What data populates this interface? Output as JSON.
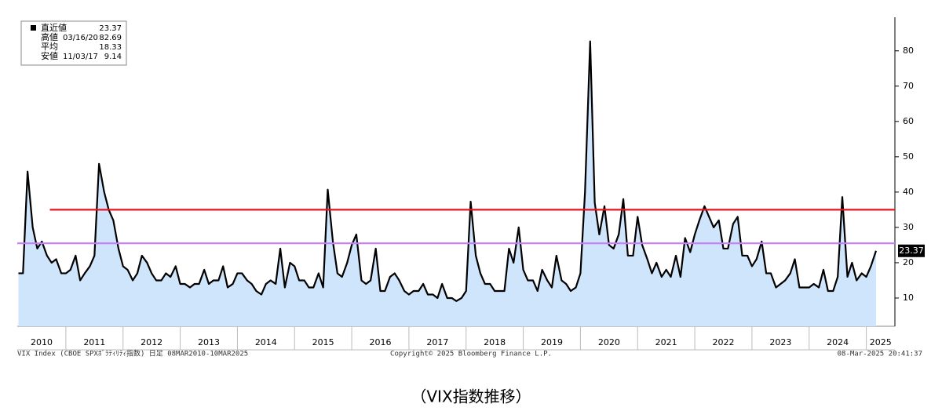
{
  "chart_data": {
    "type": "line",
    "legend": [
      {
        "label": "直近値",
        "date": null,
        "value": 23.37
      },
      {
        "label": "高値",
        "date": "03/16/20",
        "value": 82.69
      },
      {
        "label": "平均",
        "date": null,
        "value": 18.33
      },
      {
        "label": "安値",
        "date": "11/03/17",
        "value": 9.14
      }
    ],
    "last_value_label": "23.37",
    "footer_left": "VIX Index (CBOE SPXﾎﾞﾗﾃｨﾘﾃｨ指数) 日足 08MAR2010-10MAR2025",
    "footer_center": "Copyright© 2025 Bloomberg Finance L.P.",
    "footer_right": "08-Mar-2025 20:41:37",
    "caption": "（VIX指数推移）",
    "xlim": [
      2010.15,
      2025.5
    ],
    "xticks": [
      2010,
      2011,
      2012,
      2013,
      2014,
      2015,
      2016,
      2017,
      2018,
      2019,
      2020,
      2021,
      2022,
      2023,
      2024,
      2025
    ],
    "ylim": [
      2,
      89.5
    ],
    "yticks": [
      10,
      20,
      30,
      40,
      50,
      60,
      70,
      80
    ],
    "reference_lines": [
      {
        "value": 35,
        "color": "#e8141c",
        "start": 2010.72
      },
      {
        "value": 25.5,
        "color": "#c77dff",
        "start": 2010.15
      }
    ],
    "series": [
      {
        "name": "VIX Index",
        "color": "#000000",
        "fill": "#cfe5fb",
        "x": [
          2010.17,
          2010.25,
          2010.33,
          2010.42,
          2010.5,
          2010.58,
          2010.67,
          2010.75,
          2010.83,
          2010.92,
          2011.0,
          2011.08,
          2011.17,
          2011.25,
          2011.33,
          2011.42,
          2011.5,
          2011.58,
          2011.67,
          2011.75,
          2011.83,
          2011.92,
          2012.0,
          2012.08,
          2012.17,
          2012.25,
          2012.33,
          2012.42,
          2012.5,
          2012.58,
          2012.67,
          2012.75,
          2012.83,
          2012.92,
          2013.0,
          2013.08,
          2013.17,
          2013.25,
          2013.33,
          2013.42,
          2013.5,
          2013.58,
          2013.67,
          2013.75,
          2013.83,
          2013.92,
          2014.0,
          2014.08,
          2014.17,
          2014.25,
          2014.33,
          2014.42,
          2014.5,
          2014.58,
          2014.67,
          2014.75,
          2014.83,
          2014.92,
          2015.0,
          2015.08,
          2015.17,
          2015.25,
          2015.33,
          2015.42,
          2015.5,
          2015.58,
          2015.67,
          2015.75,
          2015.83,
          2015.92,
          2016.0,
          2016.08,
          2016.17,
          2016.25,
          2016.33,
          2016.42,
          2016.5,
          2016.58,
          2016.67,
          2016.75,
          2016.83,
          2016.92,
          2017.0,
          2017.08,
          2017.17,
          2017.25,
          2017.33,
          2017.42,
          2017.5,
          2017.58,
          2017.67,
          2017.75,
          2017.83,
          2017.92,
          2018.0,
          2018.08,
          2018.17,
          2018.25,
          2018.33,
          2018.42,
          2018.5,
          2018.58,
          2018.67,
          2018.75,
          2018.83,
          2018.92,
          2019.0,
          2019.08,
          2019.17,
          2019.25,
          2019.33,
          2019.42,
          2019.5,
          2019.58,
          2019.67,
          2019.75,
          2019.83,
          2019.92,
          2020.0,
          2020.08,
          2020.17,
          2020.25,
          2020.33,
          2020.42,
          2020.5,
          2020.58,
          2020.67,
          2020.75,
          2020.83,
          2020.92,
          2021.0,
          2021.08,
          2021.17,
          2021.25,
          2021.33,
          2021.42,
          2021.5,
          2021.58,
          2021.67,
          2021.75,
          2021.83,
          2021.92,
          2022.0,
          2022.08,
          2022.17,
          2022.25,
          2022.33,
          2022.42,
          2022.5,
          2022.58,
          2022.67,
          2022.75,
          2022.83,
          2022.92,
          2023.0,
          2023.08,
          2023.17,
          2023.25,
          2023.33,
          2023.42,
          2023.5,
          2023.58,
          2023.67,
          2023.75,
          2023.83,
          2023.92,
          2024.0,
          2024.08,
          2024.17,
          2024.25,
          2024.33,
          2024.42,
          2024.5,
          2024.58,
          2024.67,
          2024.75,
          2024.83,
          2024.92,
          2025.0,
          2025.08,
          2025.17
        ],
        "values": [
          17,
          17,
          45.8,
          30,
          24,
          26,
          22,
          20,
          21,
          17,
          17,
          18,
          22,
          15,
          17,
          19,
          22,
          48,
          40,
          35,
          32,
          24,
          19,
          18,
          15,
          17,
          22,
          20,
          17,
          15,
          15,
          17,
          16,
          19,
          14,
          14,
          13,
          14,
          14,
          18,
          14,
          15,
          15,
          19,
          13,
          14,
          17,
          17,
          15,
          14,
          12,
          11,
          14,
          15,
          14,
          24,
          13,
          20,
          19,
          15,
          15,
          13,
          13,
          17,
          13,
          40.7,
          26,
          17,
          16,
          20,
          25,
          28,
          15,
          14,
          15,
          24,
          12,
          12,
          16,
          17,
          15,
          12,
          11,
          12,
          12,
          14,
          11,
          11,
          10,
          14,
          10,
          10,
          9.14,
          10,
          12,
          37.3,
          22,
          17,
          14,
          14,
          12,
          12,
          12,
          24,
          20,
          30,
          18,
          15,
          15,
          12,
          18,
          15,
          13,
          22,
          15,
          14,
          12,
          13,
          17,
          40,
          82.69,
          37,
          28,
          36,
          25,
          24,
          28,
          38,
          22,
          22,
          33,
          25,
          21,
          17,
          20,
          16,
          18,
          16,
          22,
          16,
          27,
          23,
          28,
          32,
          36,
          33,
          30,
          32,
          24,
          24,
          31,
          33,
          22,
          22,
          19,
          21,
          26,
          17,
          17,
          13,
          14,
          15,
          17,
          21,
          13,
          13,
          13,
          14,
          13,
          18,
          12,
          12,
          16,
          38.6,
          16,
          20,
          15,
          17,
          16,
          19,
          23.37
        ]
      }
    ]
  }
}
